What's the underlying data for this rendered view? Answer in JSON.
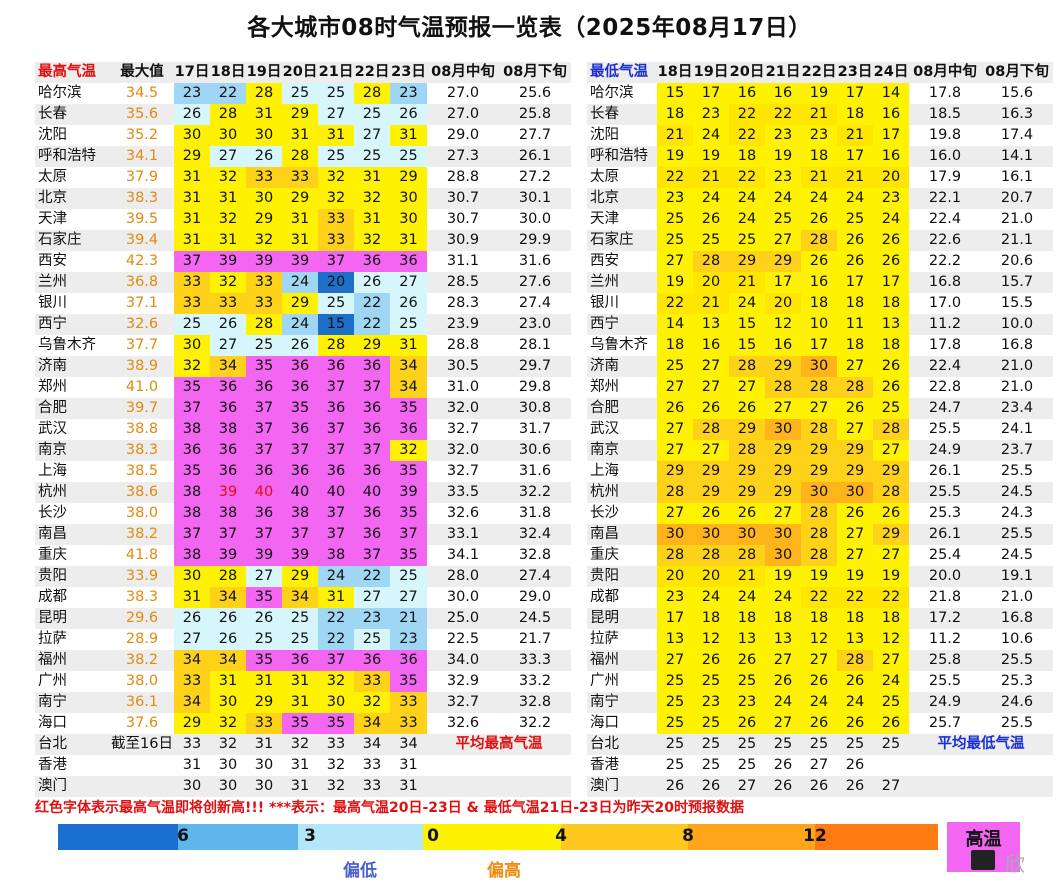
{
  "title": "各大城市08时气温预报一览表（2025年08月17日）",
  "left": {
    "headers": [
      "最高气温",
      "最大值",
      "17日",
      "18日",
      "19日",
      "20日",
      "21日",
      "22日",
      "23日",
      "08月中旬",
      "08月下旬"
    ],
    "rows": [
      [
        "哈尔滨",
        "34.5",
        "23",
        "22",
        "28",
        "25",
        "25",
        "28",
        "23",
        "27.0",
        "25.6"
      ],
      [
        "长春",
        "35.6",
        "26",
        "28",
        "31",
        "29",
        "27",
        "25",
        "26",
        "27.0",
        "25.8"
      ],
      [
        "沈阳",
        "35.2",
        "30",
        "30",
        "30",
        "31",
        "31",
        "27",
        "31",
        "29.0",
        "27.7"
      ],
      [
        "呼和浩特",
        "34.1",
        "29",
        "27",
        "26",
        "28",
        "25",
        "25",
        "25",
        "27.3",
        "26.1"
      ],
      [
        "太原",
        "37.9",
        "31",
        "32",
        "33",
        "33",
        "32",
        "31",
        "29",
        "28.8",
        "27.2"
      ],
      [
        "北京",
        "38.3",
        "31",
        "31",
        "30",
        "29",
        "32",
        "32",
        "30",
        "30.7",
        "30.1"
      ],
      [
        "天津",
        "39.5",
        "31",
        "32",
        "29",
        "31",
        "33",
        "31",
        "30",
        "30.7",
        "30.0"
      ],
      [
        "石家庄",
        "39.4",
        "31",
        "31",
        "32",
        "31",
        "33",
        "32",
        "31",
        "30.9",
        "29.9"
      ],
      [
        "西安",
        "42.3",
        "37",
        "39",
        "39",
        "39",
        "37",
        "36",
        "36",
        "31.1",
        "31.6"
      ],
      [
        "兰州",
        "36.8",
        "33",
        "32",
        "33",
        "24",
        "20",
        "26",
        "27",
        "28.5",
        "27.6"
      ],
      [
        "银川",
        "37.1",
        "33",
        "33",
        "33",
        "29",
        "25",
        "22",
        "26",
        "28.3",
        "27.4"
      ],
      [
        "西宁",
        "32.6",
        "25",
        "26",
        "28",
        "24",
        "15",
        "22",
        "25",
        "23.9",
        "23.0"
      ],
      [
        "乌鲁木齐",
        "37.7",
        "30",
        "27",
        "25",
        "26",
        "28",
        "29",
        "31",
        "28.8",
        "28.1"
      ],
      [
        "济南",
        "38.9",
        "32",
        "34",
        "35",
        "36",
        "36",
        "36",
        "34",
        "30.5",
        "29.7"
      ],
      [
        "郑州",
        "41.0",
        "35",
        "36",
        "36",
        "36",
        "37",
        "37",
        "34",
        "31.0",
        "29.8"
      ],
      [
        "合肥",
        "39.7",
        "37",
        "36",
        "37",
        "35",
        "36",
        "36",
        "35",
        "32.0",
        "30.8"
      ],
      [
        "武汉",
        "38.8",
        "38",
        "38",
        "37",
        "36",
        "37",
        "36",
        "36",
        "32.7",
        "31.7"
      ],
      [
        "南京",
        "38.3",
        "36",
        "36",
        "37",
        "37",
        "37",
        "37",
        "32",
        "32.0",
        "30.6"
      ],
      [
        "上海",
        "38.5",
        "35",
        "36",
        "36",
        "36",
        "36",
        "36",
        "35",
        "32.7",
        "31.6"
      ],
      [
        "杭州",
        "38.6",
        "38",
        "39",
        "40",
        "40",
        "40",
        "40",
        "39",
        "33.5",
        "32.2"
      ],
      [
        "长沙",
        "38.0",
        "38",
        "38",
        "36",
        "38",
        "37",
        "36",
        "35",
        "32.6",
        "31.8"
      ],
      [
        "南昌",
        "38.2",
        "37",
        "37",
        "37",
        "37",
        "37",
        "36",
        "37",
        "33.1",
        "32.4"
      ],
      [
        "重庆",
        "41.8",
        "38",
        "39",
        "39",
        "39",
        "38",
        "37",
        "35",
        "34.1",
        "32.8"
      ],
      [
        "贵阳",
        "33.9",
        "30",
        "28",
        "27",
        "29",
        "24",
        "22",
        "25",
        "28.0",
        "27.4"
      ],
      [
        "成都",
        "38.3",
        "31",
        "34",
        "35",
        "34",
        "31",
        "27",
        "27",
        "30.0",
        "29.0"
      ],
      [
        "昆明",
        "29.6",
        "26",
        "26",
        "26",
        "25",
        "22",
        "23",
        "21",
        "25.0",
        "24.5"
      ],
      [
        "拉萨",
        "28.9",
        "27",
        "26",
        "25",
        "25",
        "22",
        "25",
        "23",
        "22.5",
        "21.7"
      ],
      [
        "福州",
        "38.2",
        "34",
        "34",
        "35",
        "36",
        "37",
        "36",
        "36",
        "34.0",
        "33.3"
      ],
      [
        "广州",
        "38.0",
        "33",
        "31",
        "31",
        "31",
        "32",
        "33",
        "35",
        "32.9",
        "33.2"
      ],
      [
        "南宁",
        "36.1",
        "34",
        "30",
        "29",
        "31",
        "30",
        "32",
        "33",
        "32.7",
        "32.8"
      ],
      [
        "海口",
        "37.6",
        "29",
        "32",
        "33",
        "35",
        "35",
        "34",
        "33",
        "32.6",
        "32.2"
      ],
      [
        "台北",
        "截至16日",
        "33",
        "32",
        "31",
        "32",
        "33",
        "34",
        "34",
        "平均最高气温",
        ""
      ],
      [
        "香港",
        "",
        "31",
        "30",
        "30",
        "31",
        "32",
        "33",
        "31",
        "",
        ""
      ],
      [
        "澳门",
        "",
        "30",
        "30",
        "30",
        "31",
        "32",
        "33",
        "31",
        "",
        ""
      ]
    ]
  },
  "right": {
    "headers": [
      "最低气温",
      "18日",
      "19日",
      "20日",
      "21日",
      "22日",
      "23日",
      "24日",
      "08月中旬",
      "08月下旬"
    ],
    "rows": [
      [
        "哈尔滨",
        "15",
        "17",
        "16",
        "16",
        "19",
        "17",
        "14",
        "17.8",
        "15.6"
      ],
      [
        "长春",
        "18",
        "23",
        "22",
        "22",
        "21",
        "18",
        "16",
        "18.5",
        "16.3"
      ],
      [
        "沈阳",
        "21",
        "24",
        "22",
        "23",
        "23",
        "21",
        "17",
        "19.8",
        "17.4"
      ],
      [
        "呼和浩特",
        "19",
        "19",
        "18",
        "19",
        "18",
        "17",
        "16",
        "16.0",
        "14.1"
      ],
      [
        "太原",
        "22",
        "21",
        "22",
        "23",
        "21",
        "21",
        "20",
        "17.9",
        "16.1"
      ],
      [
        "北京",
        "23",
        "24",
        "24",
        "24",
        "24",
        "24",
        "23",
        "22.1",
        "20.7"
      ],
      [
        "天津",
        "25",
        "26",
        "24",
        "25",
        "26",
        "25",
        "24",
        "22.4",
        "21.0"
      ],
      [
        "石家庄",
        "25",
        "25",
        "25",
        "27",
        "28",
        "26",
        "26",
        "22.6",
        "21.1"
      ],
      [
        "西安",
        "27",
        "28",
        "29",
        "29",
        "26",
        "26",
        "26",
        "22.2",
        "20.6"
      ],
      [
        "兰州",
        "19",
        "20",
        "21",
        "17",
        "16",
        "17",
        "17",
        "16.8",
        "15.7"
      ],
      [
        "银川",
        "22",
        "21",
        "24",
        "20",
        "18",
        "18",
        "18",
        "17.0",
        "15.5"
      ],
      [
        "西宁",
        "14",
        "13",
        "15",
        "12",
        "10",
        "11",
        "13",
        "11.2",
        "10.0"
      ],
      [
        "乌鲁木齐",
        "18",
        "16",
        "15",
        "16",
        "17",
        "18",
        "18",
        "17.8",
        "16.8"
      ],
      [
        "济南",
        "25",
        "27",
        "28",
        "29",
        "30",
        "27",
        "26",
        "22.4",
        "21.0"
      ],
      [
        "郑州",
        "27",
        "27",
        "27",
        "28",
        "28",
        "28",
        "26",
        "22.8",
        "21.0"
      ],
      [
        "合肥",
        "26",
        "26",
        "26",
        "27",
        "27",
        "26",
        "25",
        "24.7",
        "23.4"
      ],
      [
        "武汉",
        "27",
        "28",
        "29",
        "30",
        "28",
        "27",
        "28",
        "25.5",
        "24.1"
      ],
      [
        "南京",
        "27",
        "27",
        "28",
        "29",
        "29",
        "29",
        "27",
        "24.9",
        "23.7"
      ],
      [
        "上海",
        "29",
        "29",
        "29",
        "29",
        "29",
        "29",
        "29",
        "26.1",
        "25.5"
      ],
      [
        "杭州",
        "28",
        "29",
        "29",
        "29",
        "30",
        "30",
        "28",
        "25.5",
        "24.5"
      ],
      [
        "长沙",
        "27",
        "26",
        "26",
        "27",
        "28",
        "26",
        "26",
        "25.3",
        "24.3"
      ],
      [
        "南昌",
        "30",
        "30",
        "30",
        "30",
        "28",
        "27",
        "29",
        "26.1",
        "25.5"
      ],
      [
        "重庆",
        "28",
        "28",
        "28",
        "30",
        "28",
        "27",
        "27",
        "25.4",
        "24.5"
      ],
      [
        "贵阳",
        "20",
        "20",
        "21",
        "19",
        "19",
        "19",
        "19",
        "20.0",
        "19.1"
      ],
      [
        "成都",
        "23",
        "24",
        "24",
        "24",
        "22",
        "22",
        "22",
        "21.8",
        "21.0"
      ],
      [
        "昆明",
        "17",
        "18",
        "18",
        "18",
        "18",
        "18",
        "18",
        "17.2",
        "16.8"
      ],
      [
        "拉萨",
        "13",
        "12",
        "13",
        "13",
        "12",
        "13",
        "12",
        "11.2",
        "10.6"
      ],
      [
        "福州",
        "27",
        "26",
        "26",
        "27",
        "27",
        "28",
        "27",
        "25.8",
        "25.5"
      ],
      [
        "广州",
        "25",
        "25",
        "25",
        "26",
        "26",
        "26",
        "24",
        "25.5",
        "25.3"
      ],
      [
        "南宁",
        "25",
        "23",
        "23",
        "24",
        "24",
        "24",
        "25",
        "24.9",
        "24.6"
      ],
      [
        "海口",
        "25",
        "25",
        "26",
        "27",
        "26",
        "26",
        "26",
        "25.7",
        "25.5"
      ],
      [
        "台北",
        "25",
        "25",
        "25",
        "25",
        "25",
        "25",
        "25",
        "平均最低气温",
        ""
      ],
      [
        "香港",
        "25",
        "25",
        "25",
        "26",
        "27",
        "26",
        "",
        "",
        ""
      ],
      [
        "澳门",
        "26",
        "26",
        "27",
        "26",
        "26",
        "26",
        "27",
        "",
        ""
      ]
    ]
  },
  "note": "红色字体表示最高气温即将创新高!!!  ***表示：最高气温20日-23日 & 最低气温21日-23日为昨天20时预报数据",
  "legend": {
    "numbers": [
      "6",
      "3",
      "0",
      "4",
      "8",
      "12"
    ],
    "low_label": "偏低",
    "high_label": "偏高",
    "hot_label": "高温",
    "watermark": "欣"
  },
  "colors": {
    "hot": "#f266f2",
    "deep_blue": "#1565c0",
    "blue": "#4fa8e8",
    "light_blue": "#a8dcf4",
    "pale_blue": "#cff3fa",
    "yellow": "#fff200",
    "gold": "#ffd500",
    "orange": "#ffb81c",
    "record_red": "#e01010",
    "record_orange": "#e28a10"
  }
}
